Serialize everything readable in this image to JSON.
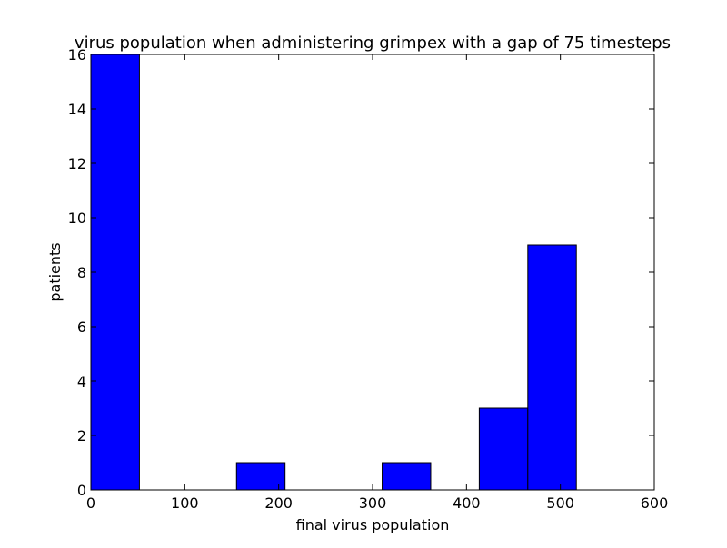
{
  "chart_data": {
    "type": "bar",
    "title": "virus population when administering grimpex with a gap of 75 timesteps",
    "xlabel": "final virus population",
    "ylabel": "patients",
    "xlim": [
      0,
      600
    ],
    "ylim": [
      0,
      16
    ],
    "xticks": [
      0,
      100,
      200,
      300,
      400,
      500,
      600
    ],
    "yticks": [
      0,
      2,
      4,
      6,
      8,
      10,
      12,
      14,
      16
    ],
    "bins": [
      {
        "start": 0,
        "end": 51.7,
        "count": 16
      },
      {
        "start": 51.7,
        "end": 103.4,
        "count": 0
      },
      {
        "start": 103.4,
        "end": 155.1,
        "count": 0
      },
      {
        "start": 155.1,
        "end": 206.8,
        "count": 1
      },
      {
        "start": 206.8,
        "end": 258.5,
        "count": 0
      },
      {
        "start": 258.5,
        "end": 310.2,
        "count": 0
      },
      {
        "start": 310.2,
        "end": 361.9,
        "count": 1
      },
      {
        "start": 361.9,
        "end": 413.6,
        "count": 0
      },
      {
        "start": 413.6,
        "end": 465.3,
        "count": 3
      },
      {
        "start": 465.3,
        "end": 517.0,
        "count": 9
      }
    ],
    "bar_color": "#0000ff",
    "edge_color": "#000000",
    "grid": false
  }
}
